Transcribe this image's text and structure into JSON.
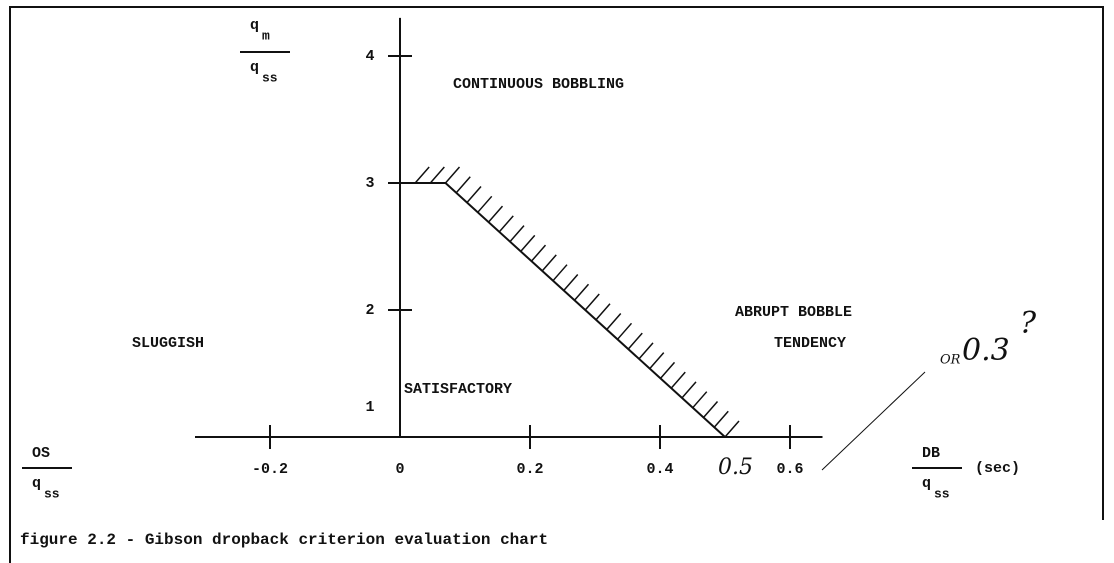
{
  "chart_data": {
    "type": "line",
    "caption": "figure 2.2  -  Gibson dropback criterion evaluation chart",
    "y_label": {
      "numerator": {
        "base": "q",
        "sub": "m"
      },
      "denominator": {
        "base": "q",
        "sub": "ss"
      }
    },
    "x_label_left": {
      "numerator": "OS",
      "denominator": {
        "base": "q",
        "sub": "ss"
      }
    },
    "x_label_right": {
      "numerator": "DB",
      "denominator": {
        "base": "q",
        "sub": "ss"
      },
      "unit": "(sec)"
    },
    "annotations": [
      "CONTINUOUS BOBBLING",
      "ABRUPT BOBBLE",
      "TENDENCY",
      "SLUGGISH",
      "SATISFACTORY"
    ],
    "handwritten": [
      "0.5",
      "OR",
      "0.3",
      "?"
    ],
    "series": [
      {
        "x": [
          0,
          0.07,
          0.5
        ],
        "y": [
          3,
          3,
          1
        ],
        "color": "#000000"
      }
    ],
    "xlim": [
      -0.3,
      0.65
    ],
    "ylim": [
      1,
      4.3
    ],
    "xticks": [
      -0.2,
      0,
      0.2,
      0.4,
      0.6
    ],
    "yticks": [
      1,
      2,
      3,
      4
    ]
  }
}
